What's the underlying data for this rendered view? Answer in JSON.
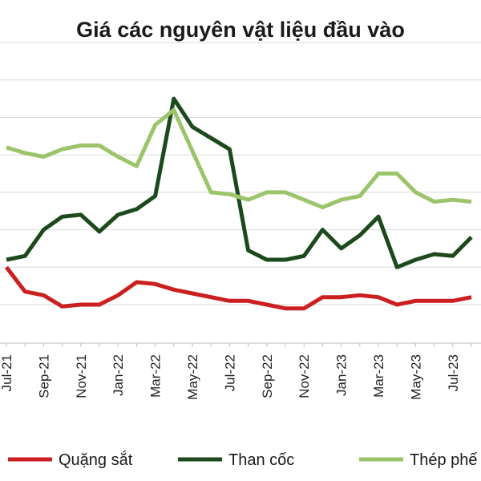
{
  "chart_data": {
    "type": "line",
    "title": "Giá các nguyên vật liệu đầu vào",
    "xlabel": "",
    "ylabel": "",
    "x": [
      "Jul-21",
      "Aug-21",
      "Sep-21",
      "Oct-21",
      "Nov-21",
      "Dec-21",
      "Jan-22",
      "Feb-22",
      "Mar-22",
      "Apr-22",
      "May-22",
      "Jun-22",
      "Jul-22",
      "Aug-22",
      "Sep-22",
      "Oct-22",
      "Nov-22",
      "Dec-22",
      "Jan-23",
      "Feb-23",
      "Mar-23",
      "Apr-23",
      "May-23",
      "Jun-23",
      "Jul-23",
      "Aug-23"
    ],
    "tick_labels": [
      "Jul-21",
      "Sep-21",
      "Nov-21",
      "Jan-22",
      "Mar-22",
      "May-22",
      "Jul-22",
      "Sep-22",
      "Nov-22",
      "Jan-23",
      "Mar-23",
      "May-23",
      "Jul-23"
    ],
    "ylim": [
      0,
      7
    ],
    "grid": true,
    "legend_position": "bottom",
    "series": [
      {
        "name": "Quặng sắt",
        "color": "#cc1f1f",
        "values": [
          1.0,
          0.35,
          0.25,
          -0.05,
          0.0,
          0.0,
          0.25,
          0.6,
          0.55,
          0.4,
          0.3,
          0.2,
          0.1,
          0.1,
          0.0,
          -0.1,
          -0.1,
          0.2,
          0.2,
          0.25,
          0.2,
          0.0,
          0.1,
          0.1,
          0.1,
          0.2
        ]
      },
      {
        "name": "Than cốc",
        "color": "#1c4a1c",
        "values": [
          1.2,
          1.3,
          2.0,
          2.35,
          2.4,
          1.95,
          2.4,
          2.55,
          2.9,
          5.5,
          4.75,
          4.45,
          4.15,
          1.45,
          1.2,
          1.2,
          1.3,
          2.0,
          1.5,
          1.85,
          2.35,
          1.0,
          1.2,
          1.35,
          1.3,
          1.8
        ]
      },
      {
        "name": "Thép phế",
        "color": "#9cc46a",
        "values": [
          4.2,
          4.05,
          3.95,
          4.15,
          4.25,
          4.25,
          3.95,
          3.7,
          4.8,
          5.2,
          4.1,
          3.0,
          2.95,
          2.8,
          3.0,
          3.0,
          2.8,
          2.6,
          2.8,
          2.9,
          3.5,
          3.5,
          3.0,
          2.75,
          2.8,
          2.75
        ]
      }
    ]
  }
}
